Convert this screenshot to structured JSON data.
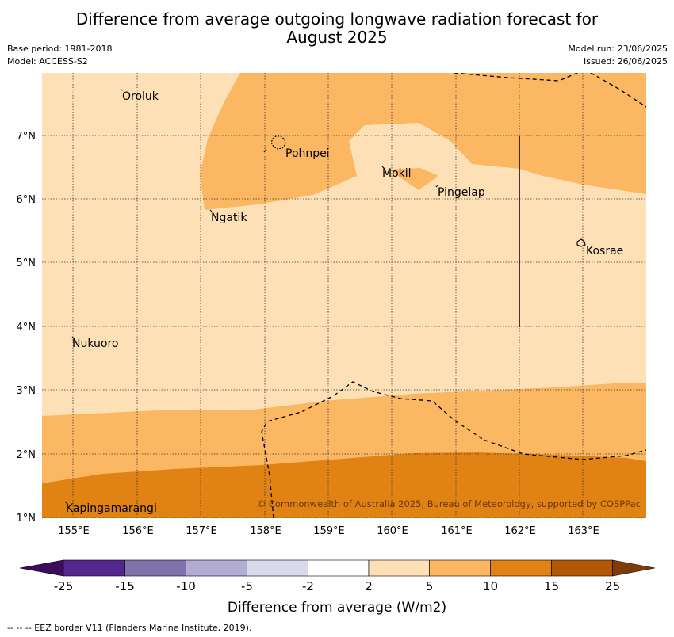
{
  "title_line1": "Difference from average outgoing longwave radiation forecast for",
  "title_line2": "August 2025",
  "base_period": "Base period: 1981-2018",
  "model": "Model: ACCESS-S2",
  "model_run": "Model run: 23/06/2025",
  "issued": "Issued: 26/06/2025",
  "copyright": "© Commonwealth of Australia 2025, Bureau of Meteorology, supported by COSPPac",
  "places": {
    "oroluk": "Oroluk",
    "pohnpei": "Pohnpei",
    "mokil": "Mokil",
    "pingelap": "Pingelap",
    "ngatik": "Ngatik",
    "kosrae": "Kosrae",
    "nukuoro": "Nukuoro",
    "kapingamarangi": "Kapingamarangi"
  },
  "lat_ticks": [
    "7°N",
    "6°N",
    "5°N",
    "4°N",
    "3°N",
    "2°N",
    "1°N"
  ],
  "lon_ticks": [
    "155°E",
    "156°E",
    "157°E",
    "158°E",
    "159°E",
    "160°E",
    "161°E",
    "162°E",
    "163°E"
  ],
  "colorbar": {
    "title": "Difference from average (W/m2)",
    "tick_labels": [
      "-25",
      "-15",
      "-10",
      "-5",
      "-2",
      "2",
      "5",
      "10",
      "15",
      "25"
    ],
    "colors": [
      "#3d0c5c",
      "#54278f",
      "#8073ac",
      "#b2abd2",
      "#d8daeb",
      "#ffffff",
      "#fde0b6",
      "#fbb761",
      "#e08214",
      "#b35806",
      "#7f3b08"
    ]
  },
  "map_colors": {
    "class_2_5": "#fde0b6",
    "class_5_10": "#fbb761",
    "class_10_15": "#e08214"
  },
  "eez_note": "--  --  -- EEZ border V11 (Flanders Marine Institute, 2019)."
}
